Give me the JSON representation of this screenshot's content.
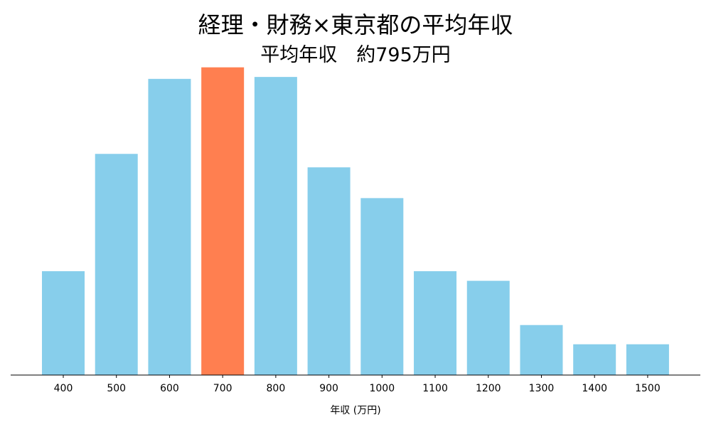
{
  "chart_data": {
    "type": "bar",
    "title": "経理・財務×東京都の平均年収",
    "subtitle": "平均年収　約795万円",
    "xlabel": "年収 (万円)",
    "ylabel": "",
    "categories": [
      "400",
      "500",
      "600",
      "700",
      "800",
      "900",
      "1000",
      "1100",
      "1200",
      "1300",
      "1400",
      "1500"
    ],
    "values": [
      5.4,
      11.5,
      15.4,
      16.0,
      15.5,
      10.8,
      9.2,
      5.4,
      4.9,
      2.6,
      1.6,
      1.6
    ],
    "ylim": [
      0,
      16.8
    ],
    "highlight_index": 3,
    "colors": {
      "bar": "#87ceeb",
      "highlight": "#ff7f50",
      "axis": "#000000"
    },
    "grid": false
  }
}
